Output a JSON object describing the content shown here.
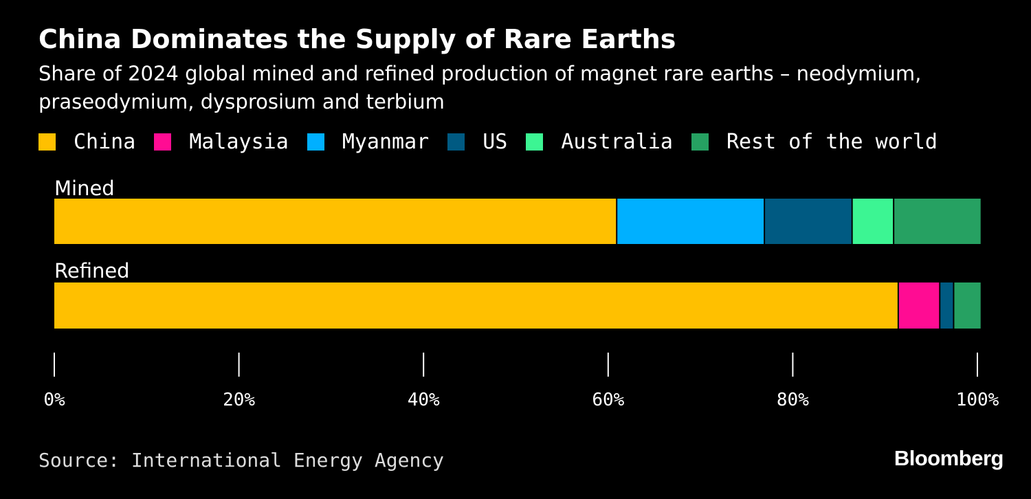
{
  "chart_data": {
    "type": "bar",
    "orientation": "horizontal",
    "stacked": true,
    "title": "China Dominates the Supply of Rare Earths",
    "subtitle": "Share of 2024 global mined and refined production of magnet rare earths – neodymium, praseodymium, dysprosium and terbium",
    "categories": [
      "Mined",
      "Refined"
    ],
    "series": [
      {
        "name": "China",
        "color": "#ffc000",
        "values": [
          61,
          91.5
        ]
      },
      {
        "name": "Malaysia",
        "color": "#ff0c93",
        "values": [
          0,
          4.5
        ]
      },
      {
        "name": "Myanmar",
        "color": "#00b0ff",
        "values": [
          16,
          0
        ]
      },
      {
        "name": "US",
        "color": "#005a82",
        "values": [
          9.5,
          1.5
        ]
      },
      {
        "name": "Australia",
        "color": "#3cf593",
        "values": [
          4.5,
          0
        ]
      },
      {
        "name": "Rest of the world",
        "color": "#26a162",
        "values": [
          9.5,
          3
        ]
      }
    ],
    "xlim": [
      0,
      100
    ],
    "xticks": [
      0,
      20,
      40,
      60,
      80,
      100
    ],
    "xtick_labels": [
      "0%",
      "20%",
      "40%",
      "60%",
      "80%",
      "100%"
    ],
    "legend_position": "top",
    "grid": false,
    "source": "Source: International Energy Agency",
    "brand": "Bloomberg"
  }
}
